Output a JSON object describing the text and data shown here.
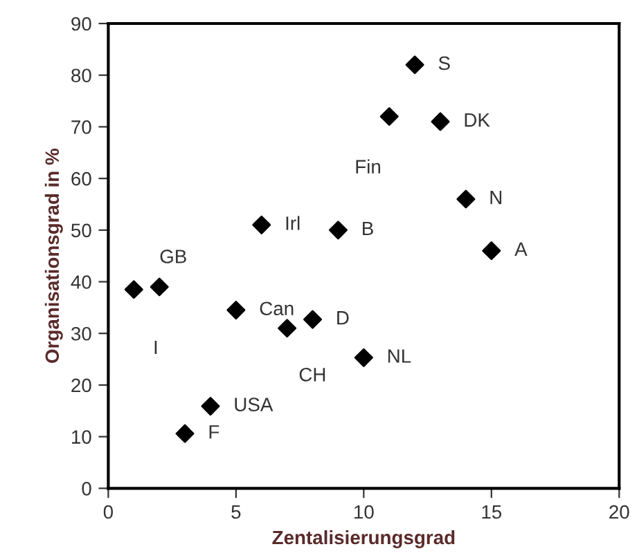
{
  "chart_data": {
    "type": "scatter",
    "xlabel": "Zentalisierungsgrad",
    "ylabel": "Organisationsgrad in %",
    "x": [
      12,
      11,
      13,
      14,
      6,
      9,
      15,
      1,
      2,
      5,
      8,
      7,
      10,
      4,
      3
    ],
    "values": [
      82,
      72,
      71,
      56,
      51,
      50,
      46,
      38.5,
      39,
      34.5,
      32.7,
      31,
      25.3,
      15.9,
      10.6
    ],
    "color": "#000000",
    "marker": "diamond",
    "xlim": [
      0,
      20
    ],
    "xticks": [
      0,
      5,
      10,
      15,
      20
    ],
    "ylim": [
      0,
      90
    ],
    "yticks": [
      0,
      10,
      20,
      30,
      40,
      50,
      60,
      70,
      80,
      90
    ],
    "grid": false,
    "legend": false,
    "annotations": [
      {
        "text": "S",
        "x": 12,
        "y": 82
      },
      {
        "text": "Fin",
        "x": 11,
        "y": 72
      },
      {
        "text": "DK",
        "x": 13,
        "y": 71
      },
      {
        "text": "N",
        "x": 14,
        "y": 56
      },
      {
        "text": "Irl",
        "x": 6,
        "y": 51
      },
      {
        "text": "B",
        "x": 9,
        "y": 50
      },
      {
        "text": "A",
        "x": 15,
        "y": 46
      },
      {
        "text": "I",
        "x": 1,
        "y": 38.5
      },
      {
        "text": "GB",
        "x": 2,
        "y": 39
      },
      {
        "text": "Can",
        "x": 5,
        "y": 34.5
      },
      {
        "text": "D",
        "x": 8,
        "y": 32.7
      },
      {
        "text": "CH",
        "x": 7,
        "y": 31
      },
      {
        "text": "NL",
        "x": 10,
        "y": 25.3
      },
      {
        "text": "USA",
        "x": 4,
        "y": 15.9
      },
      {
        "text": "F",
        "x": 3,
        "y": 10.6
      }
    ]
  }
}
